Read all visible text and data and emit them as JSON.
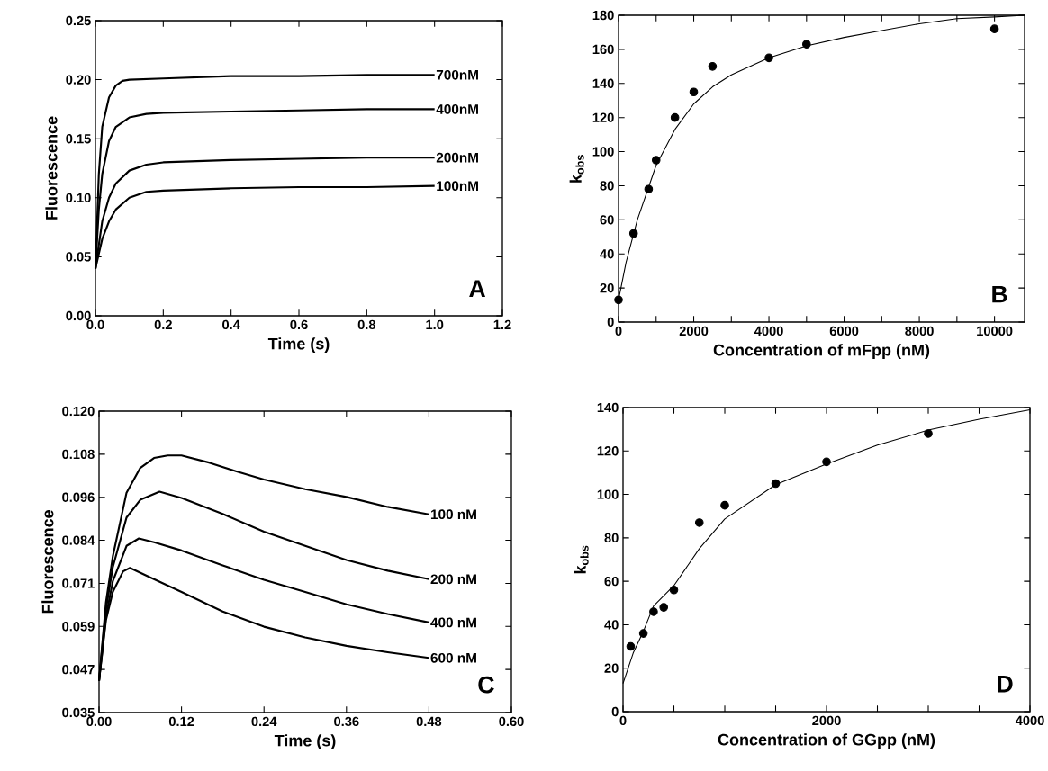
{
  "chart_data": [
    {
      "type": "line",
      "legend": "right",
      "xlabel": "Time (s)",
      "ylabel": "Fluorescence",
      "marker": "none",
      "xlim": [
        0,
        1.2
      ],
      "ylim": [
        0,
        0.25
      ],
      "xticks": [
        {
          "value": 0,
          "label": "0.0"
        },
        {
          "value": 0.2,
          "label": "0.2"
        },
        {
          "value": 0.4,
          "label": "0.4"
        },
        {
          "value": 0.6,
          "label": "0.6"
        },
        {
          "value": 0.8,
          "label": "0.8"
        },
        {
          "value": 1.0,
          "label": "1.0"
        },
        {
          "value": 1.2,
          "label": "1.2"
        }
      ],
      "yticks": [
        {
          "value": 0,
          "label": "0.00"
        },
        {
          "value": 0.05,
          "label": "0.05"
        },
        {
          "value": 0.1,
          "label": "0.10"
        },
        {
          "value": 0.15,
          "label": "0.15"
        },
        {
          "value": 0.2,
          "label": "0.20"
        },
        {
          "value": 0.25,
          "label": "0.25"
        }
      ],
      "annotations": [
        "A"
      ],
      "series": [
        {
          "name": "700nM",
          "color": "#000000",
          "x": [
            0,
            0.01,
            0.02,
            0.04,
            0.06,
            0.08,
            0.1,
            0.2,
            0.4,
            0.6,
            0.8,
            1.0
          ],
          "values": [
            0.04,
            0.12,
            0.16,
            0.185,
            0.195,
            0.199,
            0.2,
            0.201,
            0.203,
            0.203,
            0.204,
            0.204
          ]
        },
        {
          "name": "400nM",
          "color": "#000000",
          "x": [
            0,
            0.01,
            0.02,
            0.04,
            0.06,
            0.1,
            0.15,
            0.2,
            0.4,
            0.6,
            0.8,
            1.0
          ],
          "values": [
            0.04,
            0.09,
            0.12,
            0.148,
            0.16,
            0.168,
            0.171,
            0.172,
            0.173,
            0.174,
            0.175,
            0.175
          ]
        },
        {
          "name": "200nM",
          "color": "#000000",
          "x": [
            0,
            0.02,
            0.04,
            0.06,
            0.1,
            0.15,
            0.2,
            0.4,
            0.6,
            0.8,
            1.0
          ],
          "values": [
            0.04,
            0.08,
            0.1,
            0.112,
            0.123,
            0.128,
            0.13,
            0.132,
            0.133,
            0.134,
            0.134
          ]
        },
        {
          "name": "100nM",
          "color": "#000000",
          "x": [
            0,
            0.02,
            0.04,
            0.06,
            0.1,
            0.15,
            0.2,
            0.4,
            0.6,
            0.8,
            1.0
          ],
          "values": [
            0.04,
            0.065,
            0.08,
            0.09,
            0.1,
            0.105,
            0.106,
            0.108,
            0.109,
            0.109,
            0.11
          ]
        }
      ]
    },
    {
      "type": "scatter",
      "xlabel": "Concentration of mFpp (nM)",
      "ylabel": "k$_{obs}$",
      "xlim": [
        0,
        10800
      ],
      "ylim": [
        0,
        180
      ],
      "xticks": [
        0,
        {
          "value": 1000,
          "label": null
        },
        2000,
        {
          "value": 3000,
          "label": null
        },
        4000,
        {
          "value": 5000,
          "label": null
        },
        6000,
        {
          "value": 7000,
          "label": null
        },
        8000,
        {
          "value": 9000,
          "label": null
        },
        10000
      ],
      "yticks": [
        0,
        20,
        40,
        60,
        80,
        100,
        120,
        140,
        160,
        180
      ],
      "annotations": [
        "B"
      ],
      "series": [
        {
          "type": "scatter",
          "marker": "circle",
          "color": "#000000",
          "x": [
            0,
            400,
            800,
            1000,
            1500,
            2000,
            2500,
            4000,
            5000,
            10000
          ],
          "values": [
            13,
            52,
            78,
            95,
            120,
            135,
            150,
            155,
            163,
            172
          ]
        },
        {
          "type": "line",
          "marker": "none",
          "color": "#000000",
          "x": [
            0,
            200,
            500,
            1000,
            1500,
            2000,
            2500,
            3000,
            4000,
            5000,
            6000,
            7000,
            8000,
            9000,
            10000,
            10800
          ],
          "values": [
            13,
            35,
            60,
            92,
            113,
            128,
            138,
            145,
            155,
            162,
            167,
            171,
            175,
            178,
            179,
            180
          ]
        }
      ]
    },
    {
      "type": "line",
      "legend": "right",
      "xlabel": "Time (s)",
      "ylabel": "Fluorescence",
      "marker": "none",
      "xlim": [
        0,
        0.6
      ],
      "ylim": [
        0.035,
        0.12
      ],
      "xticks": [
        {
          "value": 0,
          "label": "0.00"
        },
        {
          "value": 0.12,
          "label": "0.12"
        },
        {
          "value": 0.24,
          "label": "0.24"
        },
        {
          "value": 0.36,
          "label": "0.36"
        },
        {
          "value": 0.48,
          "label": "0.48"
        },
        {
          "value": 0.6,
          "label": "0.60"
        }
      ],
      "yticks": [
        {
          "value": 0.035,
          "label": "0.035"
        },
        {
          "value": 0.04714,
          "label": "0.047"
        },
        {
          "value": 0.05929,
          "label": "0.059"
        },
        {
          "value": 0.07143,
          "label": "0.071"
        },
        {
          "value": 0.08357,
          "label": "0.084"
        },
        {
          "value": 0.09571,
          "label": "0.096"
        },
        {
          "value": 0.10786,
          "label": "0.108"
        },
        {
          "value": 0.12,
          "label": "0.120"
        }
      ],
      "annotations": [
        "C"
      ],
      "series": [
        {
          "name": "100 nM",
          "color": "#000000",
          "x": [
            0,
            0.01,
            0.02,
            0.04,
            0.06,
            0.08,
            0.1,
            0.12,
            0.16,
            0.2,
            0.24,
            0.3,
            0.36,
            0.42,
            0.48
          ],
          "values": [
            0.044,
            0.066,
            0.079,
            0.097,
            0.104,
            0.1068,
            0.1075,
            0.1075,
            0.1055,
            0.103,
            0.1007,
            0.098,
            0.0958,
            0.093,
            0.0909
          ]
        },
        {
          "name": "200 nM",
          "color": "#000000",
          "x": [
            0,
            0.01,
            0.02,
            0.04,
            0.06,
            0.088,
            0.12,
            0.18,
            0.24,
            0.3,
            0.36,
            0.42,
            0.48
          ],
          "values": [
            0.044,
            0.064,
            0.076,
            0.09,
            0.095,
            0.0973,
            0.0955,
            0.091,
            0.086,
            0.082,
            0.078,
            0.075,
            0.0726
          ]
        },
        {
          "name": "400 nM",
          "color": "#000000",
          "x": [
            0,
            0.01,
            0.02,
            0.04,
            0.058,
            0.08,
            0.12,
            0.18,
            0.24,
            0.3,
            0.36,
            0.42,
            0.48
          ],
          "values": [
            0.044,
            0.062,
            0.072,
            0.082,
            0.0841,
            0.083,
            0.0807,
            0.0765,
            0.0724,
            0.069,
            0.0655,
            0.0628,
            0.0604
          ]
        },
        {
          "name": "600 nM",
          "color": "#000000",
          "x": [
            0,
            0.01,
            0.02,
            0.035,
            0.045,
            0.07,
            0.12,
            0.18,
            0.24,
            0.3,
            0.36,
            0.42,
            0.48
          ],
          "values": [
            0.044,
            0.061,
            0.069,
            0.0748,
            0.0758,
            0.0735,
            0.069,
            0.0635,
            0.0592,
            0.0562,
            0.0538,
            0.052,
            0.0504
          ]
        }
      ]
    },
    {
      "type": "scatter",
      "xlabel": "Concentration of GGpp (nM)",
      "ylabel": "k$_{obs}$",
      "xlim": [
        0,
        4000
      ],
      "ylim": [
        0,
        140
      ],
      "xticks": [
        0,
        {
          "value": 500,
          "label": null
        },
        {
          "value": 1000,
          "label": null
        },
        {
          "value": 1500,
          "label": null
        },
        2000,
        {
          "value": 2500,
          "label": null
        },
        {
          "value": 3000,
          "label": null
        },
        {
          "value": 3500,
          "label": null
        },
        4000
      ],
      "yticks": [
        0,
        20,
        40,
        60,
        80,
        100,
        120,
        140
      ],
      "annotations": [
        "D"
      ],
      "series": [
        {
          "type": "scatter",
          "marker": "circle",
          "color": "#000000",
          "x": [
            75,
            200,
            300,
            400,
            500,
            750,
            1000,
            1500,
            2000,
            3000
          ],
          "values": [
            30,
            36,
            46,
            48,
            56,
            87,
            95,
            105,
            115,
            128
          ]
        },
        {
          "type": "line",
          "marker": "none",
          "color": "#000000",
          "x": [
            0,
            100,
            200,
            300,
            500,
            750,
            1000,
            1500,
            2000,
            2500,
            3000,
            3500,
            4000
          ],
          "values": [
            13,
            27,
            37,
            48.6,
            58,
            75,
            88.7,
            104.5,
            114,
            122.7,
            129.6,
            134.6,
            139
          ]
        }
      ]
    }
  ]
}
